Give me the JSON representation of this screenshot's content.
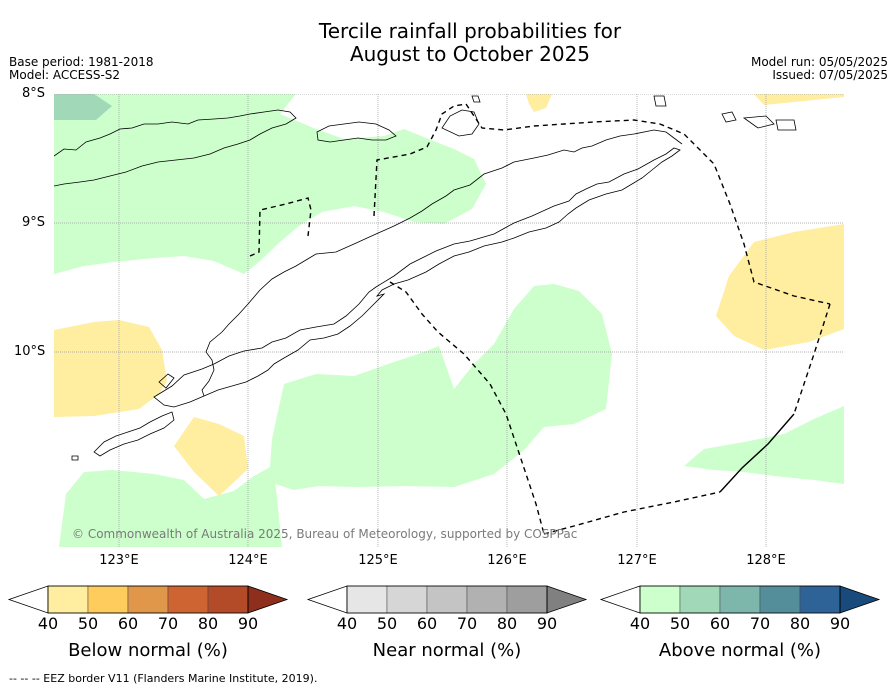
{
  "title": {
    "line1": "Tercile rainfall probabilities for",
    "line2": "August to October 2025"
  },
  "meta": {
    "base_period": "Base period: 1981-2018",
    "model": "Model: ACCESS-S2",
    "model_run": "Model run: 05/05/2025",
    "issued": "Issued: 07/05/2025"
  },
  "axes": {
    "lat_labels": [
      "8°S",
      "9°S",
      "10°S"
    ],
    "lon_labels": [
      "123°E",
      "124°E",
      "125°E",
      "126°E",
      "127°E",
      "128°E"
    ]
  },
  "copyright": "© Commonwealth of Australia 2025, Bureau of Meteorology, supported by COSPPac",
  "colorbars": [
    {
      "name": "below",
      "label": "Below normal (%)",
      "ticks": [
        "40",
        "50",
        "60",
        "70",
        "80",
        "90"
      ],
      "colors": [
        "#ffffff",
        "#ffeda0",
        "#fecc5c",
        "#e0974a",
        "#cd6432",
        "#b34a28",
        "#8e2f1d"
      ]
    },
    {
      "name": "near",
      "label": "Near normal (%)",
      "ticks": [
        "40",
        "50",
        "60",
        "70",
        "80",
        "90"
      ],
      "colors": [
        "#ffffff",
        "#e6e6e6",
        "#d6d6d6",
        "#c4c4c4",
        "#b1b1b1",
        "#9e9e9e",
        "#808080"
      ]
    },
    {
      "name": "above",
      "label": "Above normal (%)",
      "ticks": [
        "40",
        "50",
        "60",
        "70",
        "80",
        "90"
      ],
      "colors": [
        "#ffffff",
        "#ccffcc",
        "#a1d8b8",
        "#7db7ac",
        "#558e9b",
        "#2e6398",
        "#194a7c"
      ]
    }
  ],
  "footer": "-- -- -- EEZ border V11 (Flanders Marine Institute, 2019).",
  "colors": {
    "above_50": "#ccffcc",
    "above_60": "#a1d8b8",
    "below_50": "#ffeda0",
    "grid": "#9a9a9a",
    "coast": "#000000"
  }
}
